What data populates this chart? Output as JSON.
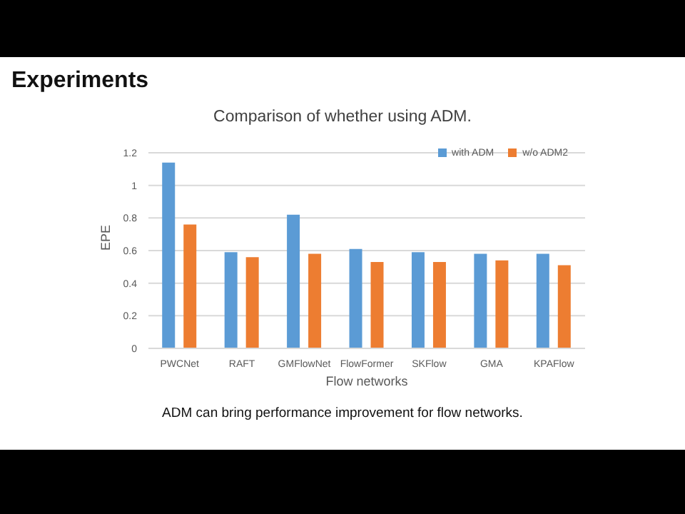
{
  "chart_data": {
    "type": "bar",
    "title": "Experiments",
    "subtitle": "Comparison of whether using ADM.",
    "xlabel": "Flow networks",
    "ylabel": "EPE",
    "categories": [
      "PWCNet",
      "RAFT",
      "GMFlowNet",
      "FlowFormer",
      "SKFlow",
      "GMA",
      "KPAFlow"
    ],
    "series": [
      {
        "name": "with ADM",
        "color": "#5b9bd5",
        "values": [
          1.14,
          0.59,
          0.82,
          0.61,
          0.59,
          0.58,
          0.58
        ]
      },
      {
        "name": "w/o ADM2",
        "color": "#ed7d31",
        "values": [
          0.76,
          0.56,
          0.58,
          0.53,
          0.53,
          0.54,
          0.51
        ]
      }
    ],
    "ylim": [
      0,
      1.2
    ],
    "yticks": [
      0,
      0.2,
      0.4,
      0.6,
      0.8,
      1,
      1.2
    ],
    "grid": "y",
    "legend": "top right",
    "annotations": [
      "ADM can bring performance improvement for flow networks."
    ]
  }
}
